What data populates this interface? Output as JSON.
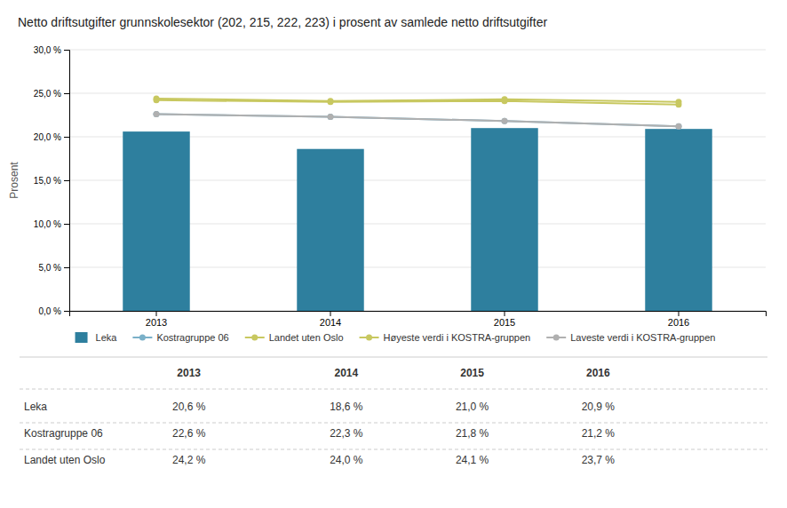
{
  "chart_data": {
    "type": "bar",
    "title": "Netto driftsutgifter grunnskolesektor (202, 215, 222, 223) i prosent av samlede netto driftsutgifter",
    "categories": [
      "2013",
      "2014",
      "2015",
      "2016"
    ],
    "y_label": "Prosent",
    "ylim": [
      0,
      30
    ],
    "yticks": [
      {
        "value": 0,
        "label": "0,0 %"
      },
      {
        "value": 5,
        "label": "5,0 %"
      },
      {
        "value": 10,
        "label": "10,0 %"
      },
      {
        "value": 15,
        "label": "15,0 %"
      },
      {
        "value": 20,
        "label": "20,0 %"
      },
      {
        "value": 25,
        "label": "25,0 %"
      },
      {
        "value": 30,
        "label": "30,0 %"
      }
    ],
    "grid": true,
    "legend": "bottom",
    "series": [
      {
        "name": "Leka",
        "type": "bar",
        "color": "#2e7f9e",
        "values": [
          20.6,
          18.6,
          21.0,
          20.9
        ],
        "value_labels": [
          "20,6 %",
          "18,6 %",
          "21,0 %",
          "20,9 %"
        ]
      },
      {
        "name": "Kostragruppe 06",
        "type": "line",
        "marker": "circle",
        "color": "#7ab0c8",
        "values": [
          22.6,
          22.3,
          21.8,
          21.2
        ],
        "value_labels": [
          "22,6 %",
          "22,3 %",
          "21,8 %",
          "21,2 %"
        ]
      },
      {
        "name": "Landet uten Oslo",
        "type": "line",
        "marker": "circle",
        "color": "#c8c860",
        "values": [
          24.2,
          24.0,
          24.1,
          23.7
        ],
        "value_labels": [
          "24,2 %",
          "24,0 %",
          "24,1 %",
          "23,7 %"
        ]
      },
      {
        "name": "Høyeste verdi i KOSTRA-gruppen",
        "type": "line",
        "marker": "circle",
        "color": "#c8c860",
        "values": [
          24.4,
          24.1,
          24.3,
          24.0
        ]
      },
      {
        "name": "Laveste verdi i KOSTRA-gruppen",
        "type": "line",
        "marker": "circle",
        "color": "#b0b0b0",
        "values": [
          22.6,
          22.3,
          21.8,
          21.2
        ]
      }
    ]
  }
}
